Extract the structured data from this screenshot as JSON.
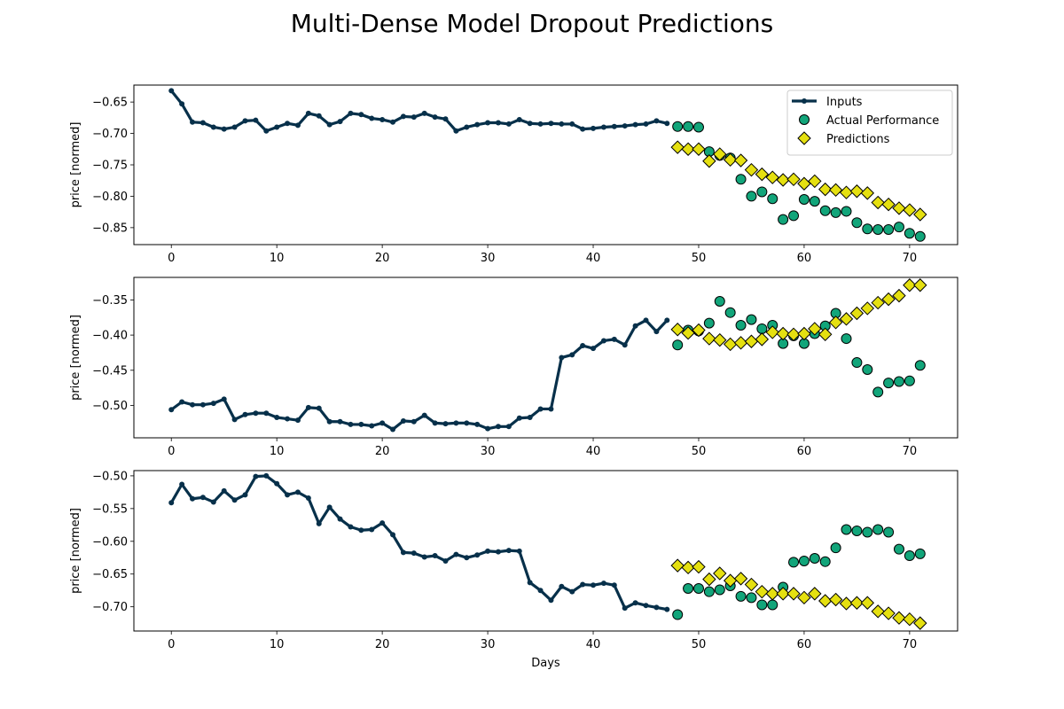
{
  "figure": {
    "title": "Multi-Dense Model Dropout Predictions"
  },
  "colors": {
    "inputs": "#07304a",
    "actual": "#12a57a",
    "predictions": "#e5e010",
    "edge": "#000000"
  },
  "legend": {
    "placement": "upper-right",
    "entries": [
      "Inputs",
      "Actual Performance",
      "Predictions"
    ]
  },
  "chart_data": [
    {
      "type": "line",
      "xlabel": "",
      "ylabel": "price [normed]",
      "xlim": [
        -3.55,
        74.55
      ],
      "ylim": [
        -0.877,
        -0.623
      ],
      "xticks": [
        0,
        10,
        20,
        30,
        40,
        50,
        60,
        70
      ],
      "yticks": [
        -0.65,
        -0.7,
        -0.75,
        -0.8,
        -0.85
      ],
      "legend": true,
      "series": [
        {
          "name": "Inputs",
          "kind": "line",
          "x": [
            0,
            1,
            2,
            3,
            4,
            5,
            6,
            7,
            8,
            9,
            10,
            11,
            12,
            13,
            14,
            15,
            16,
            17,
            18,
            19,
            20,
            21,
            22,
            23,
            24,
            25,
            26,
            27,
            28,
            29,
            30,
            31,
            32,
            33,
            34,
            35,
            36,
            37,
            38,
            39,
            40,
            41,
            42,
            43,
            44,
            45,
            46,
            47
          ],
          "y": [
            -0.632,
            -0.653,
            -0.682,
            -0.683,
            -0.69,
            -0.693,
            -0.69,
            -0.68,
            -0.679,
            -0.696,
            -0.69,
            -0.684,
            -0.687,
            -0.668,
            -0.672,
            -0.686,
            -0.681,
            -0.668,
            -0.67,
            -0.676,
            -0.678,
            -0.682,
            -0.673,
            -0.674,
            -0.668,
            -0.674,
            -0.677,
            -0.696,
            -0.69,
            -0.686,
            -0.683,
            -0.683,
            -0.685,
            -0.678,
            -0.684,
            -0.685,
            -0.684,
            -0.685,
            -0.685,
            -0.693,
            -0.692,
            -0.69,
            -0.689,
            -0.688,
            -0.686,
            -0.685,
            -0.68,
            -0.684
          ]
        },
        {
          "name": "Actual Performance",
          "kind": "scatter",
          "x": [
            48,
            49,
            50,
            51,
            52,
            53,
            54,
            55,
            56,
            57,
            58,
            59,
            60,
            61,
            62,
            63,
            64,
            65,
            66,
            67,
            68,
            69,
            70,
            71
          ],
          "y": [
            -0.689,
            -0.689,
            -0.69,
            -0.729,
            -0.735,
            -0.739,
            -0.773,
            -0.8,
            -0.793,
            -0.804,
            -0.837,
            -0.831,
            -0.805,
            -0.808,
            -0.823,
            -0.826,
            -0.824,
            -0.842,
            -0.852,
            -0.853,
            -0.853,
            -0.849,
            -0.859,
            -0.864
          ]
        },
        {
          "name": "Predictions",
          "kind": "diamond",
          "x": [
            48,
            49,
            50,
            51,
            52,
            53,
            54,
            55,
            56,
            57,
            58,
            59,
            60,
            61,
            62,
            63,
            64,
            65,
            66,
            67,
            68,
            69,
            70,
            71
          ],
          "y": [
            -0.722,
            -0.725,
            -0.725,
            -0.744,
            -0.733,
            -0.742,
            -0.743,
            -0.758,
            -0.765,
            -0.77,
            -0.774,
            -0.773,
            -0.78,
            -0.776,
            -0.789,
            -0.79,
            -0.794,
            -0.792,
            -0.795,
            -0.81,
            -0.813,
            -0.819,
            -0.822,
            -0.829
          ]
        }
      ]
    },
    {
      "type": "line",
      "xlabel": "",
      "ylabel": "price [normed]",
      "xlim": [
        -3.55,
        74.55
      ],
      "ylim": [
        -0.546,
        -0.318
      ],
      "xticks": [
        0,
        10,
        20,
        30,
        40,
        50,
        60,
        70
      ],
      "yticks": [
        -0.35,
        -0.4,
        -0.45,
        -0.5
      ],
      "legend": false,
      "series": [
        {
          "name": "Inputs",
          "kind": "line",
          "x": [
            0,
            1,
            2,
            3,
            4,
            5,
            6,
            7,
            8,
            9,
            10,
            11,
            12,
            13,
            14,
            15,
            16,
            17,
            18,
            19,
            20,
            21,
            22,
            23,
            24,
            25,
            26,
            27,
            28,
            29,
            30,
            31,
            32,
            33,
            34,
            35,
            36,
            37,
            38,
            39,
            40,
            41,
            42,
            43,
            44,
            45,
            46,
            47
          ],
          "y": [
            -0.506,
            -0.495,
            -0.499,
            -0.499,
            -0.497,
            -0.491,
            -0.52,
            -0.513,
            -0.511,
            -0.511,
            -0.517,
            -0.519,
            -0.521,
            -0.503,
            -0.504,
            -0.523,
            -0.523,
            -0.527,
            -0.527,
            -0.529,
            -0.525,
            -0.534,
            -0.522,
            -0.523,
            -0.514,
            -0.525,
            -0.526,
            -0.525,
            -0.525,
            -0.527,
            -0.533,
            -0.53,
            -0.53,
            -0.518,
            -0.517,
            -0.505,
            -0.505,
            -0.432,
            -0.428,
            -0.415,
            -0.419,
            -0.408,
            -0.406,
            -0.414,
            -0.387,
            -0.379,
            -0.395,
            -0.379
          ]
        },
        {
          "name": "Actual Performance",
          "kind": "scatter",
          "x": [
            48,
            49,
            50,
            51,
            52,
            53,
            54,
            55,
            56,
            57,
            58,
            59,
            60,
            61,
            62,
            63,
            64,
            65,
            66,
            67,
            68,
            69,
            70,
            71
          ],
          "y": [
            -0.414,
            -0.393,
            -0.394,
            -0.383,
            -0.352,
            -0.368,
            -0.386,
            -0.378,
            -0.391,
            -0.386,
            -0.412,
            -0.401,
            -0.412,
            -0.398,
            -0.387,
            -0.369,
            -0.405,
            -0.439,
            -0.449,
            -0.481,
            -0.468,
            -0.466,
            -0.465,
            -0.443
          ]
        },
        {
          "name": "Predictions",
          "kind": "diamond",
          "x": [
            48,
            49,
            50,
            51,
            52,
            53,
            54,
            55,
            56,
            57,
            58,
            59,
            60,
            61,
            62,
            63,
            64,
            65,
            66,
            67,
            68,
            69,
            70,
            71
          ],
          "y": [
            -0.392,
            -0.397,
            -0.393,
            -0.405,
            -0.407,
            -0.413,
            -0.411,
            -0.409,
            -0.406,
            -0.396,
            -0.398,
            -0.399,
            -0.398,
            -0.391,
            -0.399,
            -0.382,
            -0.377,
            -0.369,
            -0.362,
            -0.354,
            -0.349,
            -0.344,
            -0.329,
            -0.329
          ]
        }
      ]
    },
    {
      "type": "line",
      "xlabel": "Days",
      "ylabel": "price [normed]",
      "xlim": [
        -3.55,
        74.55
      ],
      "ylim": [
        -0.737,
        -0.492
      ],
      "xticks": [
        0,
        10,
        20,
        30,
        40,
        50,
        60,
        70
      ],
      "yticks": [
        -0.5,
        -0.55,
        -0.6,
        -0.65,
        -0.7
      ],
      "legend": false,
      "series": [
        {
          "name": "Inputs",
          "kind": "line",
          "x": [
            0,
            1,
            2,
            3,
            4,
            5,
            6,
            7,
            8,
            9,
            10,
            11,
            12,
            13,
            14,
            15,
            16,
            17,
            18,
            19,
            20,
            21,
            22,
            23,
            24,
            25,
            26,
            27,
            28,
            29,
            30,
            31,
            32,
            33,
            34,
            35,
            36,
            37,
            38,
            39,
            40,
            41,
            42,
            43,
            44,
            45,
            46,
            47
          ],
          "y": [
            -0.541,
            -0.513,
            -0.535,
            -0.533,
            -0.54,
            -0.523,
            -0.537,
            -0.529,
            -0.501,
            -0.5,
            -0.512,
            -0.529,
            -0.525,
            -0.534,
            -0.573,
            -0.548,
            -0.566,
            -0.578,
            -0.583,
            -0.582,
            -0.572,
            -0.59,
            -0.617,
            -0.618,
            -0.624,
            -0.622,
            -0.63,
            -0.62,
            -0.625,
            -0.621,
            -0.615,
            -0.616,
            -0.614,
            -0.615,
            -0.663,
            -0.675,
            -0.69,
            -0.669,
            -0.677,
            -0.666,
            -0.667,
            -0.664,
            -0.667,
            -0.702,
            -0.694,
            -0.698,
            -0.701,
            -0.704
          ]
        },
        {
          "name": "Actual Performance",
          "kind": "scatter",
          "x": [
            48,
            49,
            50,
            51,
            52,
            53,
            54,
            55,
            56,
            57,
            58,
            59,
            60,
            61,
            62,
            63,
            64,
            65,
            66,
            67,
            68,
            69,
            70,
            71
          ],
          "y": [
            -0.712,
            -0.672,
            -0.672,
            -0.677,
            -0.674,
            -0.668,
            -0.684,
            -0.686,
            -0.697,
            -0.697,
            -0.67,
            -0.632,
            -0.63,
            -0.626,
            -0.631,
            -0.61,
            -0.582,
            -0.584,
            -0.586,
            -0.582,
            -0.586,
            -0.612,
            -0.622,
            -0.619
          ]
        },
        {
          "name": "Predictions",
          "kind": "diamond",
          "x": [
            48,
            49,
            50,
            51,
            52,
            53,
            54,
            55,
            56,
            57,
            58,
            59,
            60,
            61,
            62,
            63,
            64,
            65,
            66,
            67,
            68,
            69,
            70,
            71
          ],
          "y": [
            -0.637,
            -0.64,
            -0.639,
            -0.658,
            -0.649,
            -0.66,
            -0.657,
            -0.666,
            -0.677,
            -0.68,
            -0.68,
            -0.68,
            -0.686,
            -0.68,
            -0.691,
            -0.689,
            -0.695,
            -0.694,
            -0.694,
            -0.707,
            -0.71,
            -0.717,
            -0.719,
            -0.725
          ]
        }
      ]
    }
  ]
}
